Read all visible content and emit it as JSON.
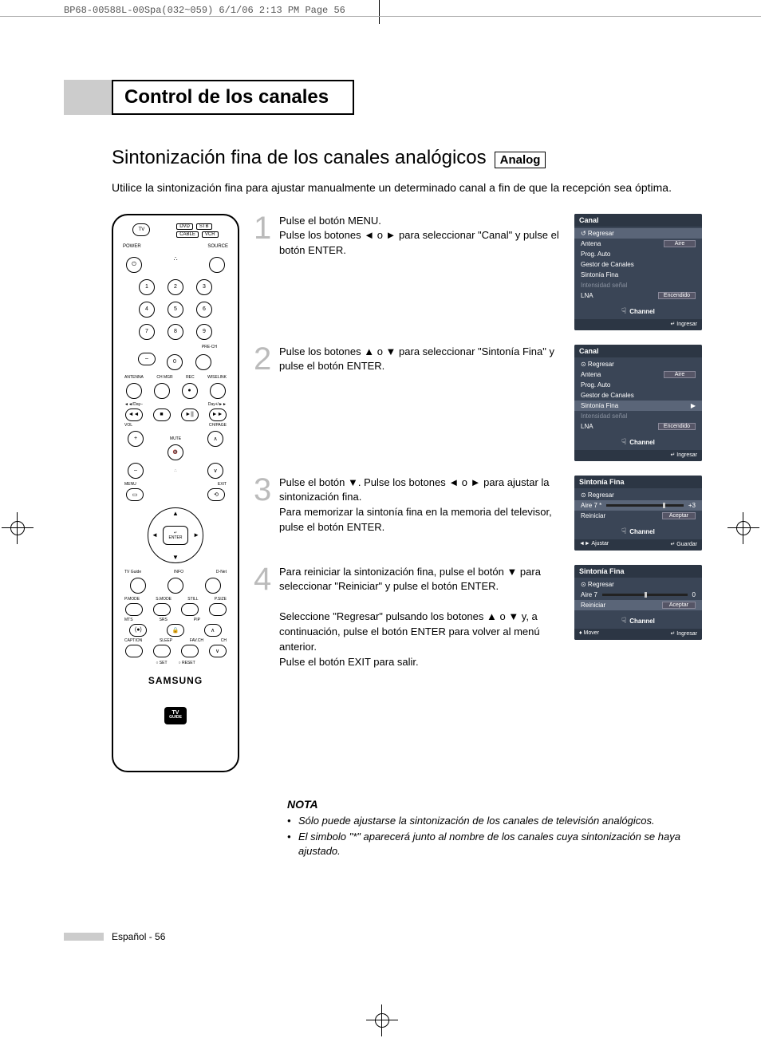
{
  "print_header": "BP68-00588L-00Spa(032~059)  6/1/06  2:13 PM  Page 56",
  "section_title": "Control de los canales",
  "subtitle": "Sintonización fina de los canales analógicos",
  "analog_badge": "Analog",
  "intro": "Utilice la sintonización fina para ajustar manualmente un determinado canal a fin de que la recepción sea óptima.",
  "remote": {
    "top": {
      "tv": "TV",
      "dvd": "DVD",
      "stb": "STB",
      "cable": "CABLE",
      "vcr": "VCR"
    },
    "power": "POWER",
    "source": "SOURCE",
    "nums": [
      "1",
      "2",
      "3",
      "4",
      "5",
      "6",
      "7",
      "8",
      "9",
      "0"
    ],
    "dash": "–",
    "prech": "PRE-CH",
    "row_labels": {
      "antenna": "ANTENNA",
      "chmgr": "CH MGR",
      "rec": "REC",
      "wiselink": "WISELINK"
    },
    "transport_labels": {
      "left": "◄◄/Day–",
      "right": "Day+/►►"
    },
    "vol": "VOL",
    "ch": "CH/PAGE",
    "mute": "MUTE",
    "menu": "MENU",
    "exit": "EXIT",
    "enter": "ENTER",
    "enter_icon": "↵",
    "guide_labels": {
      "tvguide": "TV Guide",
      "info": "INFO",
      "dnet": "D-Net"
    },
    "mode_labels": {
      "pmode": "P.MODE",
      "smode": "S.MODE",
      "still": "STILL",
      "psize": "P.SIZE"
    },
    "small_labels": {
      "mts": "MTS",
      "srs": "SRS",
      "pip": "PIP",
      "caption": "CAPTION",
      "sleep": "SLEEP",
      "favch": "FAV.CH",
      "ch2": "CH"
    },
    "set": "SET",
    "reset": "RESET",
    "brand": "SAMSUNG",
    "tvguide_logo_top": "TV",
    "tvguide_logo_bot": "GUIDE"
  },
  "steps": [
    {
      "num": "1",
      "text": "Pulse el botón MENU.\nPulse los botones ◄ o ► para seleccionar \"Canal\" y pulse el botón ENTER.",
      "osd": {
        "title": "Canal",
        "rows": [
          {
            "label": "Regresar",
            "sel": true,
            "icon": "↺"
          },
          {
            "label": "Antena",
            "val": "Aire"
          },
          {
            "label": "Prog. Auto"
          },
          {
            "label": "Gestor de Canales"
          },
          {
            "label": "Sintonía Fina"
          },
          {
            "label": "Intensidad señal",
            "dim": true
          },
          {
            "label": "LNA",
            "val": "Encendido"
          }
        ],
        "channel": "Channel",
        "footer_right": "↵ Ingresar"
      }
    },
    {
      "num": "2",
      "text": "Pulse los botones ▲ o ▼ para seleccionar \"Sintonía Fina\" y pulse el botón ENTER.",
      "osd": {
        "title": "Canal",
        "rows": [
          {
            "label": "Regresar",
            "icon": "⊙"
          },
          {
            "label": "Antena",
            "val": "Aire"
          },
          {
            "label": "Prog. Auto"
          },
          {
            "label": "Gestor de Canales"
          },
          {
            "label": "Sintonía Fina",
            "sel": true,
            "arrow": "▶"
          },
          {
            "label": "Intensidad señal",
            "dim": true
          },
          {
            "label": "LNA",
            "val": "Encendido"
          }
        ],
        "channel": "Channel",
        "footer_right": "↵ Ingresar"
      }
    },
    {
      "num": "3",
      "text": "Pulse el botón ▼. Pulse los botones ◄ o ► para ajustar la sintonización fina.\nPara memorizar la sintonía fina en la memoria del televisor, pulse el botón ENTER.",
      "osd": {
        "title": "Sintonía Fina",
        "fine": {
          "regresar": "Regresar",
          "channel_label": "Aire 7 *",
          "value": "+3",
          "thumb_pct": 73,
          "reiniciar": "Reiniciar",
          "aceptar": "Aceptar"
        },
        "channel": "Channel",
        "footer_left": "◄► Ajustar",
        "footer_right": "↵ Guardar"
      }
    },
    {
      "num": "4",
      "text": "Para reiniciar la sintonización fina, pulse el botón ▼ para seleccionar \"Reiniciar\" y pulse el botón ENTER.\n\nSeleccione \"Regresar\" pulsando los botones ▲ o ▼ y, a continuación, pulse el botón ENTER para volver al menú anterior.\nPulse el botón EXIT para salir.",
      "osd": {
        "title": "Sintonía Fina",
        "fine": {
          "regresar": "Regresar",
          "channel_label": "Aire 7",
          "value": "0",
          "thumb_pct": 50,
          "reiniciar": "Reiniciar",
          "aceptar": "Aceptar",
          "reiniciar_sel": true
        },
        "channel": "Channel",
        "footer_left": "♦ Mover",
        "footer_right": "↵ Ingresar"
      }
    }
  ],
  "note": {
    "title": "NOTA",
    "items": [
      "Sólo puede ajustarse la sintonización de los canales de televisión analógicos.",
      "El simbolo \"*\" aparecerá junto al nombre de los canales cuya sintonización se haya ajustado."
    ]
  },
  "footer": "Español - 56"
}
